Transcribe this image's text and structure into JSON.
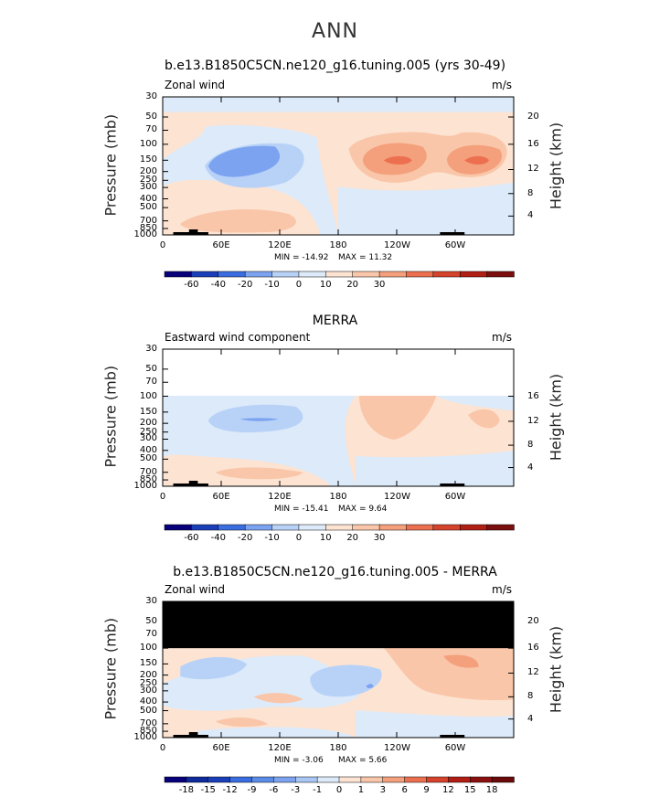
{
  "header": {
    "title": "ANN"
  },
  "panels": [
    {
      "title": "b.e13.B1850C5CN.ne120_g16.tuning.005 (yrs 30-49)",
      "field": "Zonal wind",
      "units": "m/s",
      "y_label": "Pressure (mb)",
      "y2_label": "Height (km)",
      "pressure_ticks": [
        "30",
        "50",
        "70",
        "100",
        "150",
        "200",
        "250",
        "300",
        "400",
        "500",
        "700",
        "850",
        "1000"
      ],
      "height_ticks": [
        "20",
        "16",
        "12",
        "8",
        "4"
      ],
      "lon_ticks": [
        "0",
        "60E",
        "120E",
        "180",
        "120W",
        "60W"
      ],
      "min_label": "MIN = -14.92",
      "max_label": "MAX = 11.32",
      "colorbar_labels": [
        "-60",
        "-40",
        "-20",
        "-10",
        "0",
        "10",
        "20",
        "30"
      ]
    },
    {
      "title": "MERRA",
      "field": "Eastward wind component",
      "units": "m/s",
      "y_label": "Pressure (mb)",
      "y2_label": "Height (km)",
      "pressure_ticks": [
        "30",
        "50",
        "70",
        "100",
        "150",
        "200",
        "250",
        "300",
        "400",
        "500",
        "700",
        "850",
        "1000"
      ],
      "height_ticks": [
        "16",
        "12",
        "8",
        "4"
      ],
      "lon_ticks": [
        "0",
        "60E",
        "120E",
        "180",
        "120W",
        "60W"
      ],
      "min_label": "MIN = -15.41",
      "max_label": "MAX =   9.64",
      "colorbar_labels": [
        "-60",
        "-40",
        "-20",
        "-10",
        "0",
        "10",
        "20",
        "30"
      ]
    },
    {
      "title": "b.e13.B1850C5CN.ne120_g16.tuning.005 - MERRA",
      "field": "Zonal wind",
      "units": "m/s",
      "y_label": "Pressure (mb)",
      "y2_label": "Height (km)",
      "pressure_ticks": [
        "30",
        "50",
        "70",
        "100",
        "150",
        "200",
        "250",
        "300",
        "400",
        "500",
        "700",
        "850",
        "1000"
      ],
      "height_ticks": [
        "20",
        "16",
        "12",
        "8",
        "4"
      ],
      "lon_ticks": [
        "0",
        "60E",
        "120E",
        "180",
        "120W",
        "60W"
      ],
      "min_label": "MIN =  -3.06",
      "max_label": "MAX =   5.66",
      "colorbar_labels": [
        "-18",
        "-15",
        "-12",
        "-9",
        "-6",
        "-3",
        "-1",
        "0",
        "1",
        "3",
        "6",
        "9",
        "12",
        "15",
        "18"
      ]
    }
  ],
  "chart_data": [
    {
      "type": "heatmap",
      "title": "b.e13.B1850C5CN.ne120_g16.tuning.005 (yrs 30-49)",
      "subtitle": "Zonal wind",
      "units": "m/s",
      "xlabel": "",
      "ylabel": "Pressure (mb)",
      "y2label": "Height (km)",
      "x_range": [
        0,
        360
      ],
      "y_range_mb": [
        1000,
        30
      ],
      "y_scale": "log",
      "min": -14.92,
      "max": 11.32,
      "levels": [
        -60,
        -40,
        -20,
        -10,
        0,
        10,
        20,
        30
      ],
      "colors": [
        "#08007a",
        "#1a3fb8",
        "#3a6ee0",
        "#7ca3f0",
        "#b8d2f7",
        "#dceaf9",
        "#fde3d2",
        "#f9c6a9",
        "#f4a07c",
        "#ec7050",
        "#d5432c",
        "#b01e14",
        "#7c0e0e"
      ],
      "grid": false,
      "legend": "colorbar-below"
    },
    {
      "type": "heatmap",
      "title": "MERRA",
      "subtitle": "Eastward wind component",
      "units": "m/s",
      "xlabel": "",
      "ylabel": "Pressure (mb)",
      "y2label": "Height (km)",
      "x_range": [
        0,
        360
      ],
      "y_range_mb": [
        1000,
        30
      ],
      "y_scale": "log",
      "data_top_mb": 100,
      "min": -15.41,
      "max": 9.64,
      "levels": [
        -60,
        -40,
        -20,
        -10,
        0,
        10,
        20,
        30
      ],
      "grid": false,
      "legend": "colorbar-below"
    },
    {
      "type": "heatmap",
      "title": "b.e13.B1850C5CN.ne120_g16.tuning.005 - MERRA",
      "subtitle": "Zonal wind",
      "units": "m/s",
      "xlabel": "",
      "ylabel": "Pressure (mb)",
      "y2label": "Height (km)",
      "x_range": [
        0,
        360
      ],
      "y_range_mb": [
        1000,
        30
      ],
      "y_scale": "log",
      "masked_above_mb": 100,
      "min": -3.06,
      "max": 5.66,
      "levels": [
        -18,
        -15,
        -12,
        -9,
        -6,
        -3,
        -1,
        0,
        1,
        3,
        6,
        9,
        12,
        15,
        18
      ],
      "colors": [
        "#08007a",
        "#0f2a9a",
        "#1a3fb8",
        "#3a6ee0",
        "#5b8de8",
        "#7ca3f0",
        "#a9c6f4",
        "#dceaf9",
        "#fde3d2",
        "#f9c6a9",
        "#f4a07c",
        "#ec7050",
        "#d5432c",
        "#b01e14",
        "#8a1010",
        "#6a0a0a"
      ],
      "grid": false,
      "legend": "colorbar-below"
    }
  ]
}
